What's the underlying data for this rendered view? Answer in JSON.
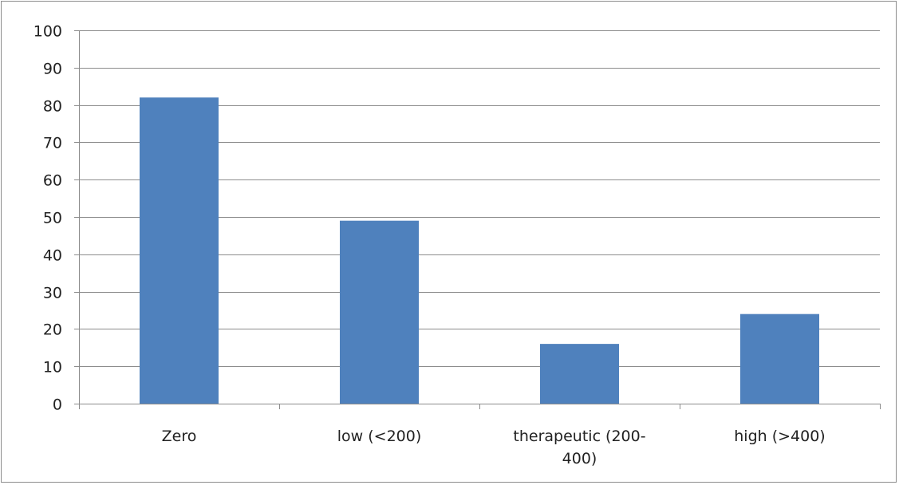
{
  "chart_data": {
    "type": "bar",
    "categories": [
      [
        "Zero"
      ],
      [
        "low (<200)"
      ],
      [
        "therapeutic (200-",
        "400)"
      ],
      [
        "high (>400)"
      ]
    ],
    "values": [
      82,
      49,
      16,
      24
    ],
    "ylim": [
      0,
      100
    ],
    "yticks": [
      0,
      10,
      20,
      30,
      40,
      50,
      60,
      70,
      80,
      90,
      100
    ],
    "grid": true,
    "legend": "none",
    "bar_color": "#4f81bd",
    "grid_color": "#8c8c8c",
    "axis_color": "#8c8c8c"
  }
}
